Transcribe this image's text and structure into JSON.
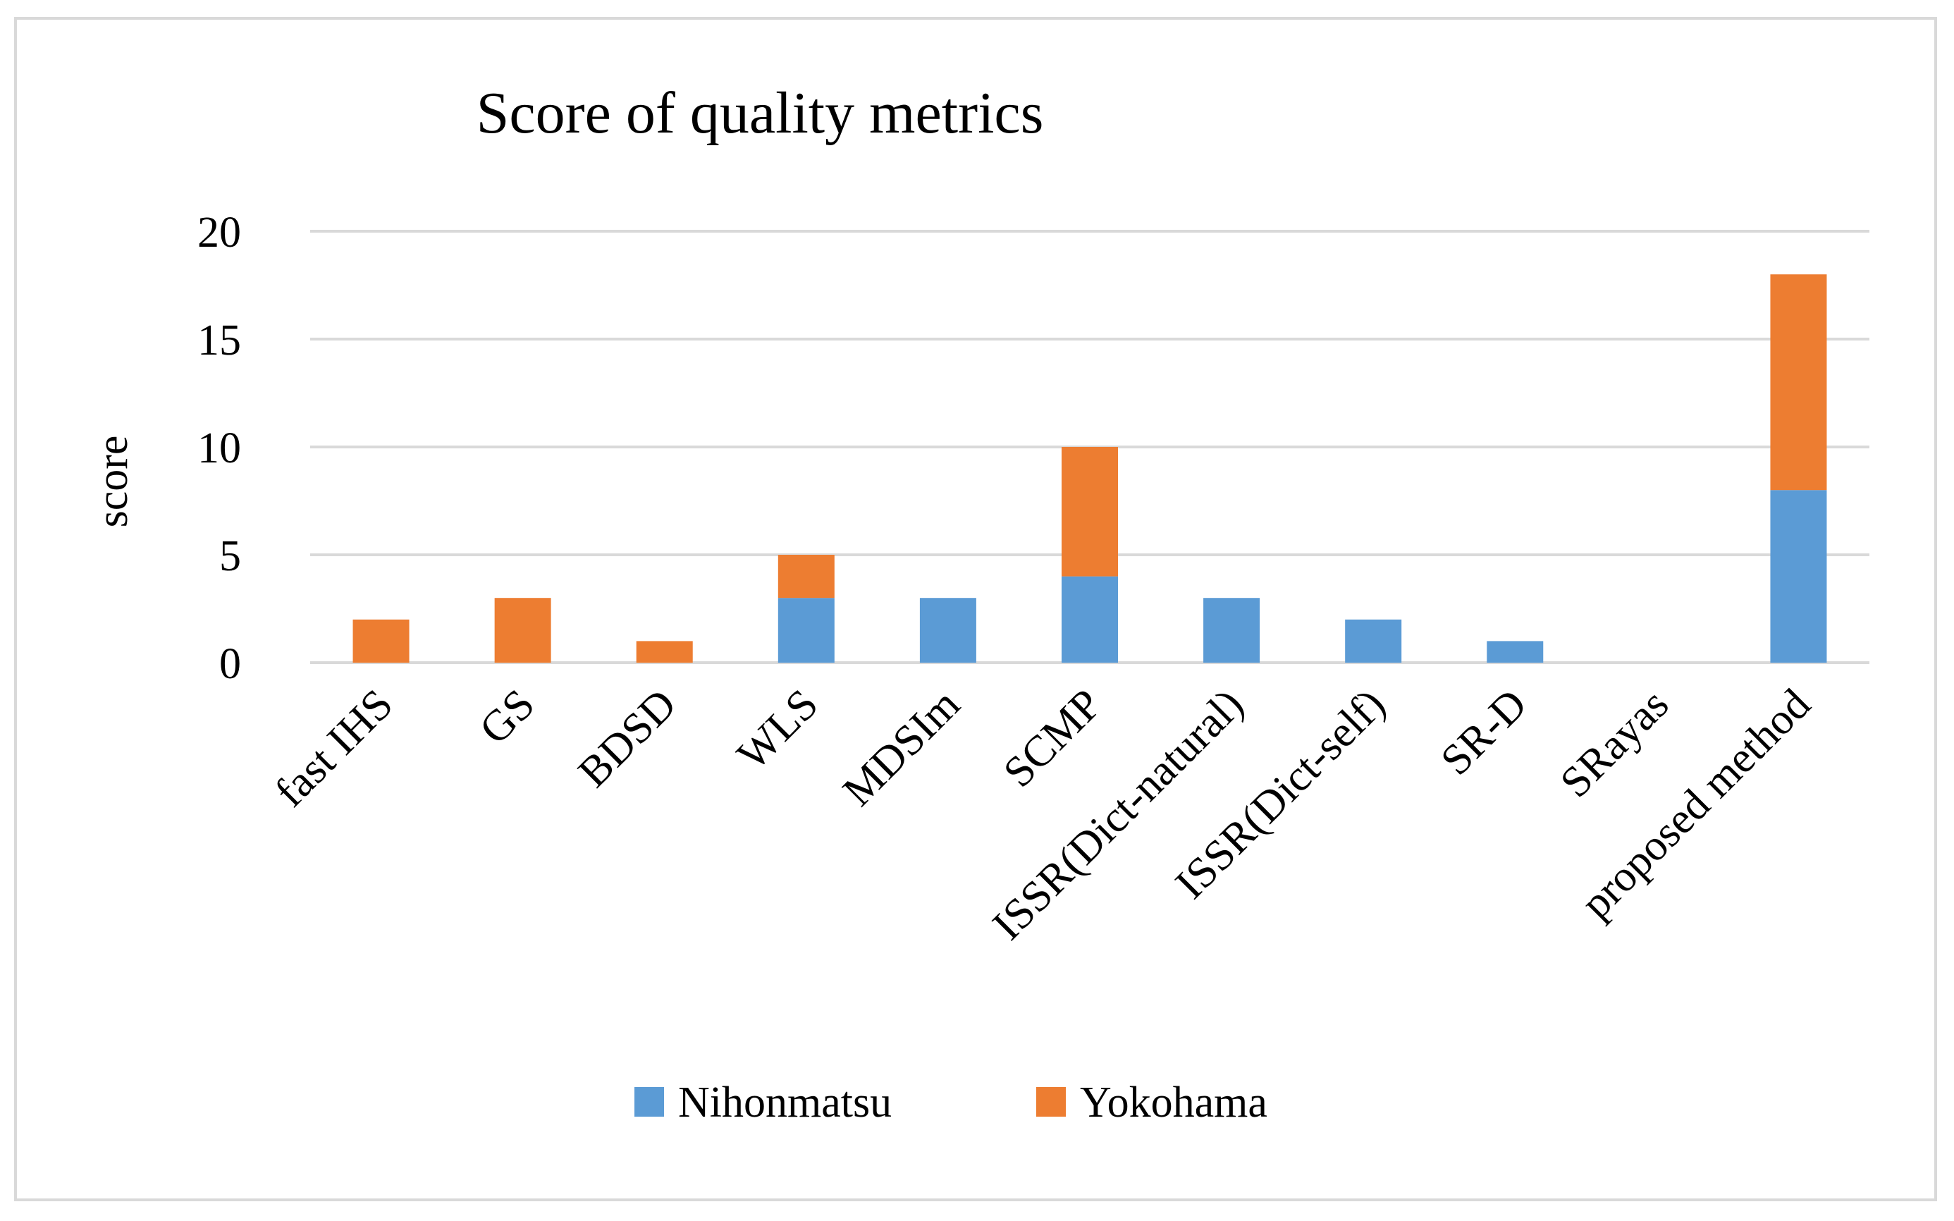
{
  "chart_data": {
    "type": "bar",
    "stacked": true,
    "title": "Score of quality metrics",
    "xlabel": "",
    "ylabel": "score",
    "ylim": [
      0,
      20
    ],
    "yticks": [
      0,
      5,
      10,
      15,
      20
    ],
    "grid": true,
    "legend_position": "bottom",
    "categories": [
      "fast IHS",
      "GS",
      "BDSD",
      "WLS",
      "MDSIm",
      "SCMP",
      "ISSR(Dict-natural)",
      "ISSR(Dict-self)",
      "SR-D",
      "SRayas",
      "proposed method"
    ],
    "series": [
      {
        "name": "Nihonmatsu",
        "color": "#5b9bd5",
        "values": [
          0,
          0,
          0,
          3,
          3,
          4,
          3,
          2,
          1,
          0,
          8
        ]
      },
      {
        "name": "Yokohama",
        "color": "#ed7d31",
        "values": [
          2,
          3,
          1,
          2,
          0,
          6,
          0,
          0,
          0,
          0,
          10
        ]
      }
    ]
  }
}
